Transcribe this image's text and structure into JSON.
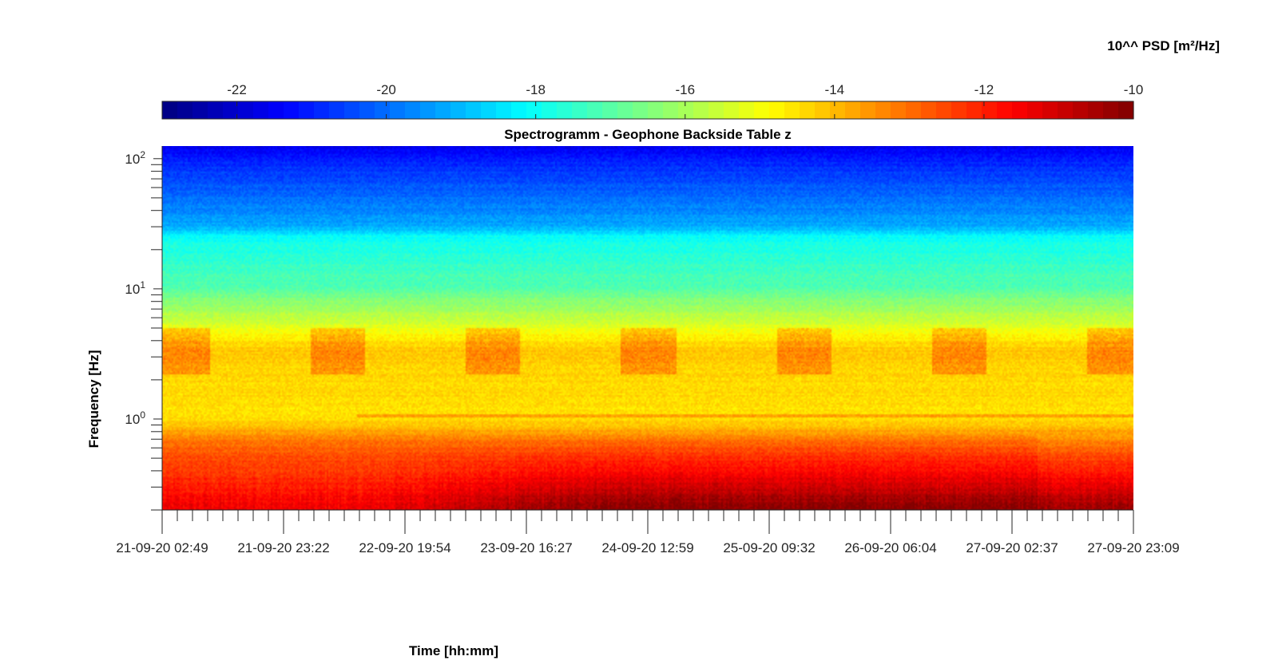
{
  "chart_data": {
    "type": "heatmap",
    "title": "Spectrogramm - Geophone Backside Table z",
    "xlabel": "Time [hh:mm]",
    "ylabel": "Frequency [Hz]",
    "colorbar": {
      "label": "10^^ PSD [m²/Hz]",
      "range": [
        -23,
        -10
      ],
      "ticks": [
        -22,
        -20,
        -18,
        -16,
        -14,
        -12,
        -10
      ],
      "tick_labels": [
        "-22",
        "-20",
        "-18",
        "-16",
        "-14",
        "-12",
        "-10"
      ],
      "colormap": "jet",
      "placement": "top"
    },
    "x_ticks": [
      "21-09-20 02:49",
      "21-09-20 23:22",
      "22-09-20 19:54",
      "23-09-20 16:27",
      "24-09-20 12:59",
      "25-09-20 09:32",
      "26-09-20 06:04",
      "27-09-20 02:37",
      "27-09-20 23:09"
    ],
    "x_range": [
      "21-09-20 02:49",
      "27-09-20 23:09"
    ],
    "y_scale": "log",
    "y_range": [
      0.2,
      125
    ],
    "y_ticks": [
      {
        "value": 1,
        "base": "10",
        "exp": "0"
      },
      {
        "value": 10,
        "base": "10",
        "exp": "1"
      },
      {
        "value": 100,
        "base": "10",
        "exp": "2"
      }
    ],
    "grid": false,
    "psd_profile_log10": [
      {
        "freq_hz": 0.2,
        "psd": -11.4
      },
      {
        "freq_hz": 0.5,
        "psd": -12.6
      },
      {
        "freq_hz": 0.7,
        "psd": -13.2
      },
      {
        "freq_hz": 1,
        "psd": -14.5
      },
      {
        "freq_hz": 3.5,
        "psd": -14.2
      },
      {
        "freq_hz": 10,
        "psd": -17.0
      },
      {
        "freq_hz": 25,
        "psd": -18.0
      },
      {
        "freq_hz": 30,
        "psd": -19.2
      },
      {
        "freq_hz": 100,
        "psd": -21.0
      },
      {
        "freq_hz": 125,
        "psd": -21.6
      }
    ]
  }
}
